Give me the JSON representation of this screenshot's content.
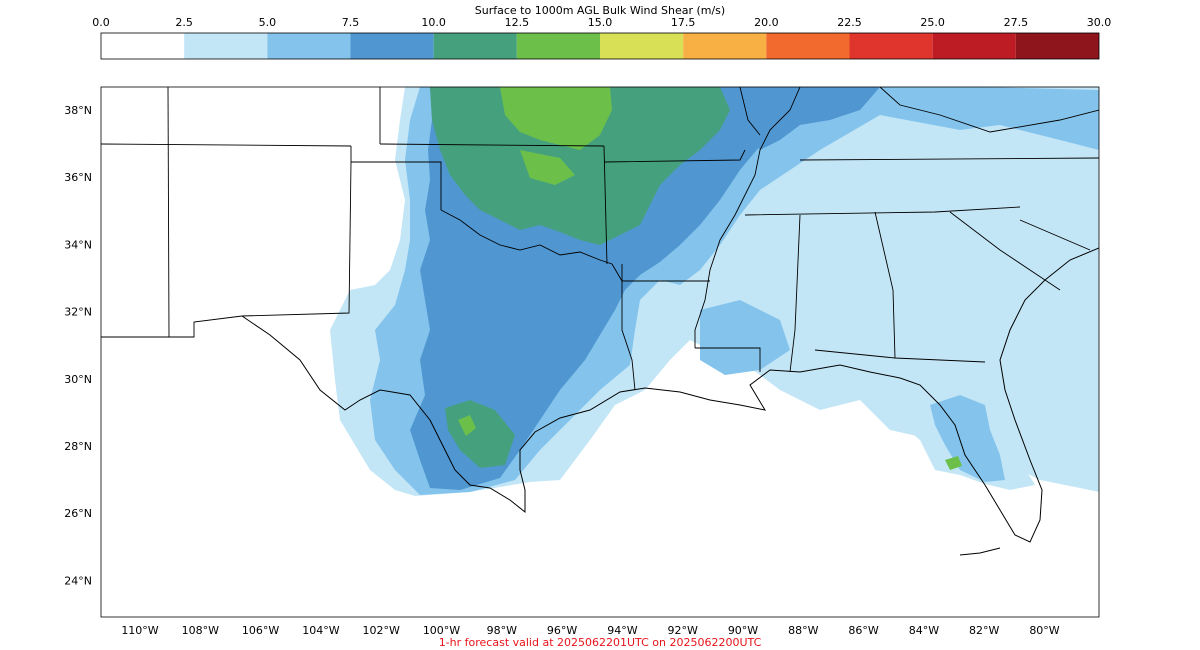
{
  "title": "Surface to 1000m AGL Bulk Wind Shear (m/s)",
  "caption": "1-hr forecast valid at 2025062201UTC on 2025062200UTC",
  "colorbar": {
    "ticks": [
      "0.0",
      "2.5",
      "5.0",
      "7.5",
      "10.0",
      "12.5",
      "15.0",
      "17.5",
      "20.0",
      "22.5",
      "25.0",
      "27.5",
      "30.0"
    ],
    "bins": [
      {
        "min": 0.0,
        "max": 2.5,
        "color": "#ffffff"
      },
      {
        "min": 2.5,
        "max": 5.0,
        "color": "#c3e6f7"
      },
      {
        "min": 5.0,
        "max": 7.5,
        "color": "#84c4ec"
      },
      {
        "min": 7.5,
        "max": 10.0,
        "color": "#5097d2"
      },
      {
        "min": 10.0,
        "max": 12.5,
        "color": "#45a07e"
      },
      {
        "min": 12.5,
        "max": 15.0,
        "color": "#6cc04a"
      },
      {
        "min": 15.0,
        "max": 17.5,
        "color": "#d8e055"
      },
      {
        "min": 17.5,
        "max": 20.0,
        "color": "#f8b044"
      },
      {
        "min": 20.0,
        "max": 22.5,
        "color": "#f26a2e"
      },
      {
        "min": 22.5,
        "max": 25.0,
        "color": "#e0352d"
      },
      {
        "min": 25.0,
        "max": 27.5,
        "color": "#bd1c24"
      },
      {
        "min": 27.5,
        "max": 30.0,
        "color": "#8f151c"
      }
    ]
  },
  "axes": {
    "lat_labels": [
      "38°N",
      "36°N",
      "34°N",
      "32°N",
      "30°N",
      "28°N",
      "26°N",
      "24°N"
    ],
    "lon_labels": [
      "110°W",
      "108°W",
      "106°W",
      "104°W",
      "102°W",
      "100°W",
      "98°W",
      "96°W",
      "94°W",
      "92°W",
      "90°W",
      "88°W",
      "86°W",
      "84°W",
      "82°W",
      "80°W"
    ]
  },
  "shear_regions": [
    {
      "level": "5.0-7.5 m/s",
      "color": "#84c4ec"
    },
    {
      "level": "7.5-10.0 m/s",
      "color": "#5097d2"
    },
    {
      "level": "10.0-12.5 m/s",
      "color": "#45a07e"
    },
    {
      "level": "12.5-15.0 m/s",
      "color": "#6cc04a"
    }
  ]
}
